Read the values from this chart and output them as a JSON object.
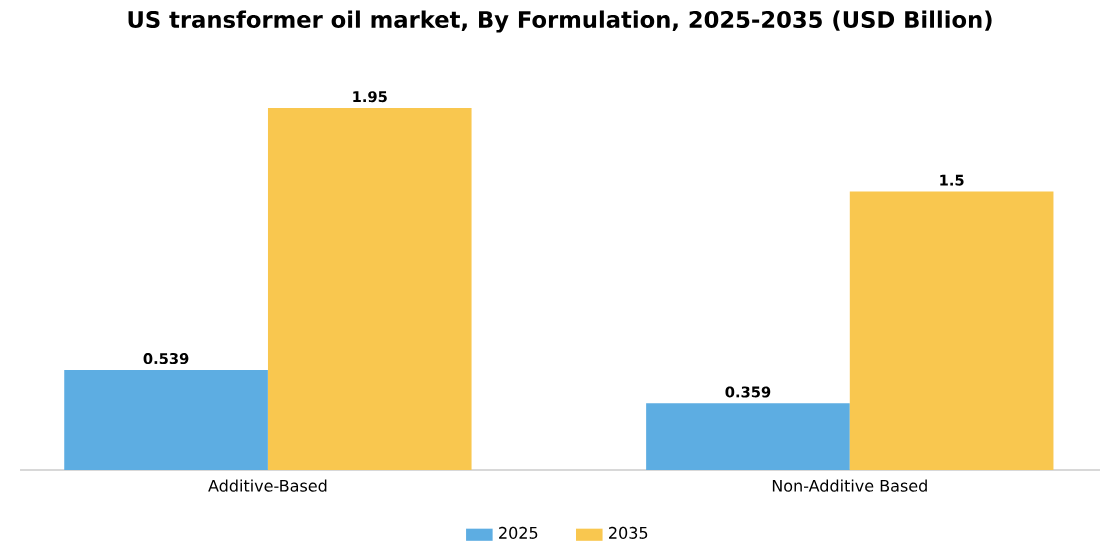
{
  "chart_data": {
    "type": "bar",
    "title": "US transformer oil market, By Formulation, 2025-2035 (USD Billion)",
    "categories": [
      "Additive-Based",
      "Non-Additive Based"
    ],
    "series": [
      {
        "name": "2025",
        "color": "#5dade2",
        "values": [
          0.539,
          0.359
        ]
      },
      {
        "name": "2035",
        "color": "#f9c74f",
        "values": [
          1.95,
          1.5
        ]
      }
    ],
    "data_labels": true,
    "legend": "bottom"
  }
}
